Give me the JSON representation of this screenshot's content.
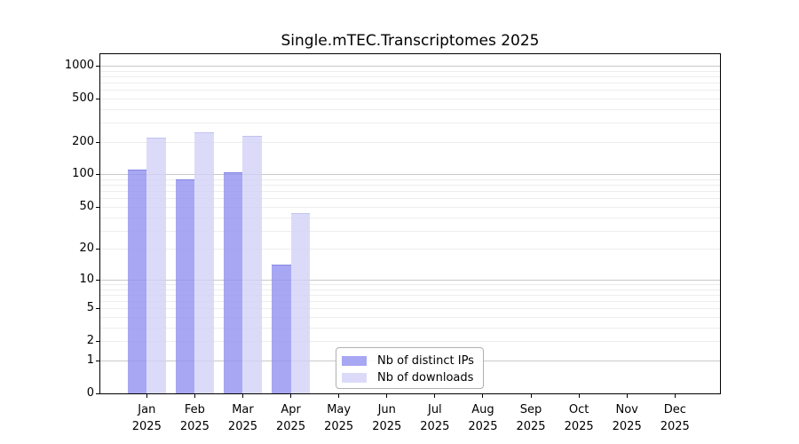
{
  "title": "Single.mTEC.Transcriptomes 2025",
  "chart_data": {
    "type": "bar",
    "title": "Single.mTEC.Transcriptomes 2025",
    "months": [
      "Jan",
      "Feb",
      "Mar",
      "Apr",
      "May",
      "Jun",
      "Jul",
      "Aug",
      "Sep",
      "Oct",
      "Nov",
      "Dec"
    ],
    "year": "2025",
    "categories": [
      "Jan 2025",
      "Feb 2025",
      "Mar 2025",
      "Apr 2025",
      "May 2025",
      "Jun 2025",
      "Jul 2025",
      "Aug 2025",
      "Sep 2025",
      "Oct 2025",
      "Nov 2025",
      "Dec 2025"
    ],
    "series": [
      {
        "name": "Nb of distinct IPs",
        "values": [
          110,
          90,
          104,
          14,
          0,
          0,
          0,
          0,
          0,
          0,
          0,
          0
        ],
        "color": "rgba(145,145,240,0.8)",
        "edge_color": "rgba(110,110,215,0.6)"
      },
      {
        "name": "Nb of downloads",
        "values": [
          218,
          245,
          227,
          44,
          0,
          0,
          0,
          0,
          0,
          0,
          0,
          0
        ],
        "color": "rgba(210,210,247,0.8)",
        "edge_color": "rgba(175,175,235,0.6)"
      }
    ],
    "y_ticks": [
      0,
      1,
      2,
      5,
      10,
      20,
      50,
      100,
      200,
      500,
      1000
    ],
    "y_scale": "log10(1+v)",
    "ylim": [
      0,
      1276
    ],
    "grid": true,
    "legend_position": "lower center inside"
  },
  "colors": {
    "background": "#ffffff",
    "axis": "#000000",
    "major_grid": "#c9c9c9",
    "minor_grid": "#ededed",
    "legend_border": "#b0b0b0",
    "text": "#000000"
  }
}
